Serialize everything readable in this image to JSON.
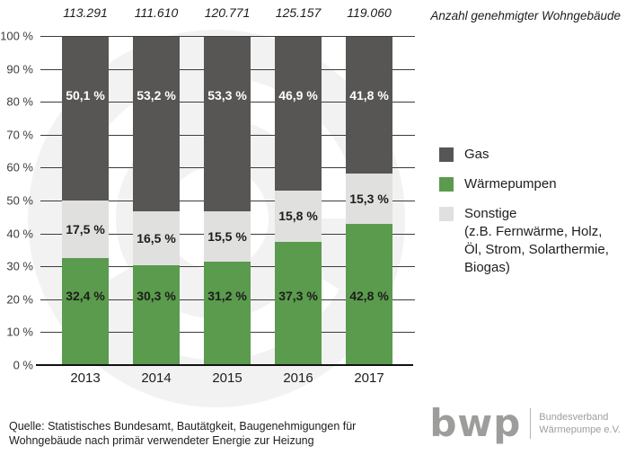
{
  "title_right": "Anzahl genehmigter Wohngebäude",
  "chart_data": {
    "type": "bar",
    "stacked": true,
    "title": "Anzahl genehmigter Wohngebäude",
    "categories": [
      "2013",
      "2014",
      "2015",
      "2016",
      "2017"
    ],
    "totals": [
      "113.291",
      "111.610",
      "120.771",
      "125.157",
      "119.060"
    ],
    "series": [
      {
        "name": "Gas",
        "color": "#575655",
        "label_color": "#ffffff",
        "values": [
          50.1,
          53.2,
          53.3,
          46.9,
          41.8
        ],
        "labels": [
          "50,1 %",
          "53,2 %",
          "53,3 %",
          "46,9 %",
          "41,8 %"
        ]
      },
      {
        "name": "Sonstige",
        "color": "#e0e0df",
        "label_color": "#1d1d1b",
        "values": [
          17.5,
          16.5,
          15.5,
          15.8,
          15.3
        ],
        "labels": [
          "17,5 %",
          "16,5 %",
          "15,5 %",
          "15,8 %",
          "15,3 %"
        ]
      },
      {
        "name": "Wärmepumpen",
        "color": "#5a9b4d",
        "label_color": "#1d1d1b",
        "values": [
          32.4,
          30.3,
          31.2,
          37.3,
          42.8
        ],
        "labels": [
          "32,4 %",
          "30,3 %",
          "31,2 %",
          "37,3 %",
          "42,8 %"
        ]
      }
    ],
    "y_ticks": [
      "100 %",
      "90 %",
      "80 %",
      "70 %",
      "60 %",
      "50 %",
      "40 %",
      "30 %",
      "20 %",
      "10 %",
      "0 %"
    ],
    "ylim": [
      0,
      100
    ],
    "grid": true,
    "legend_position": "right"
  },
  "legend": {
    "items": [
      {
        "id": "gas",
        "label": "Gas",
        "color": "#575655"
      },
      {
        "id": "waermepumpen",
        "label": "Wärmepumpen",
        "color": "#5a9b4d"
      },
      {
        "id": "sonstige",
        "label": "Sonstige\n(z.B. Fernwärme, Holz,\nÖl, Strom, Solarthermie,\nBiogas)",
        "color": "#e0e0df"
      }
    ]
  },
  "source": {
    "line1": "Quelle: Statistisches Bundesamt, Bautätgkeit, Baugenehmigungen für",
    "line2": "Wohngebäude nach primär verwendeter Energie zur Heizung"
  },
  "logo": {
    "text": "bwp",
    "org_line1": "Bundesverband",
    "org_line2": "Wärmepumpe e.V."
  },
  "colors": {
    "gas": "#575655",
    "waermepumpen": "#5a9b4d",
    "sonstige": "#e0e0df",
    "gridline": "#3c3c3b",
    "watermark": "#f2f2f2",
    "logo_gray": "#9d9d9c"
  }
}
